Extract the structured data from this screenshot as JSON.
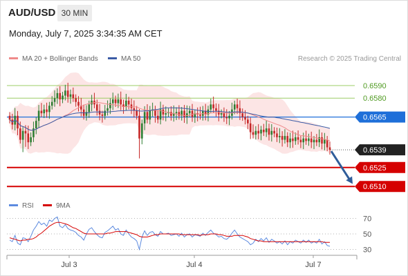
{
  "header": {
    "pair": "AUD/USD",
    "timeframe": "30 MIN",
    "datetime": "Monday, July 7, 2025 3:34:35 AM CET",
    "credit": "Research © 2025 Trading Central"
  },
  "legend": {
    "ma20_label": "MA 20 + Bollinger Bands",
    "ma50_label": "MA 50",
    "rsi_label": "RSI",
    "ma9_label": "9MA"
  },
  "colors": {
    "up": "#2e7d32",
    "down": "#c62828",
    "ma20": "#ef8a8a",
    "bands_fill": "#fbdcdc",
    "ma50": "#3b5ba5",
    "resistance": "#9ccc65",
    "pivot": "#1e6fd9",
    "support": "#d50000",
    "current_tag": "#222222",
    "arrow": "#2f5d9a",
    "rsi": "#5c8adf",
    "rsi_ma": "#d50000"
  },
  "chart_data": [
    {
      "type": "candlestick",
      "title": "AUD/USD 30 MIN",
      "x_labels": [
        "Jul 3",
        "Jul 4",
        "Jul 7"
      ],
      "ylim": [
        0.6503,
        0.6602
      ],
      "current_price": 0.6539,
      "levels": [
        {
          "value": 0.659,
          "label": "0.6590",
          "kind": "resistance"
        },
        {
          "value": 0.658,
          "label": "0.6580",
          "kind": "resistance"
        },
        {
          "value": 0.6565,
          "label": "0.6565",
          "kind": "pivot"
        },
        {
          "value": 0.6539,
          "label": "0.6539",
          "kind": "current"
        },
        {
          "value": 0.6525,
          "label": "0.6525",
          "kind": "support"
        },
        {
          "value": 0.651,
          "label": "0.6510",
          "kind": "support"
        }
      ],
      "forecast_arrow": {
        "from": 0.6538,
        "to": 0.6512
      },
      "series_close": [
        0.6563,
        0.6559,
        0.6566,
        0.6556,
        0.6547,
        0.6554,
        0.6552,
        0.6545,
        0.6549,
        0.6556,
        0.6562,
        0.657,
        0.6568,
        0.6571,
        0.6569,
        0.6574,
        0.6577,
        0.658,
        0.6584,
        0.6579,
        0.6582,
        0.6586,
        0.6581,
        0.6583,
        0.658,
        0.6577,
        0.6574,
        0.6571,
        0.6566,
        0.6569,
        0.6575,
        0.6578,
        0.6575,
        0.657,
        0.6567,
        0.6566,
        0.657,
        0.6572,
        0.6576,
        0.6579,
        0.6576,
        0.6579,
        0.6575,
        0.6573,
        0.6578,
        0.6575,
        0.6572,
        0.657,
        0.6566,
        0.6548,
        0.656,
        0.6569,
        0.6563,
        0.657,
        0.6571,
        0.6566,
        0.6563,
        0.6571,
        0.6567,
        0.6568,
        0.6569,
        0.6566,
        0.6568,
        0.6569,
        0.6566,
        0.657,
        0.6565,
        0.6568,
        0.657,
        0.6565,
        0.6568,
        0.6567,
        0.6566,
        0.657,
        0.6567,
        0.6571,
        0.6575,
        0.6572,
        0.657,
        0.6567,
        0.6568,
        0.6565,
        0.6564,
        0.6566,
        0.6571,
        0.6575,
        0.6572,
        0.6568,
        0.6565,
        0.6563,
        0.656,
        0.6553,
        0.6551,
        0.6554,
        0.6552,
        0.6555,
        0.6553,
        0.6556,
        0.6551,
        0.6554,
        0.6552,
        0.6549,
        0.655,
        0.6547,
        0.655,
        0.6545,
        0.6548,
        0.6546,
        0.6549,
        0.6547,
        0.6545,
        0.6548,
        0.6546,
        0.6548,
        0.6545,
        0.6547,
        0.6545,
        0.6549,
        0.6544,
        0.6547,
        0.6541,
        0.6539
      ]
    },
    {
      "type": "line",
      "title": "RSI",
      "series": [
        {
          "name": "RSI"
        },
        {
          "name": "9MA"
        }
      ],
      "ylim": [
        25,
        75
      ],
      "ticks": [
        70,
        50,
        30
      ],
      "rsi_values": [
        42,
        40,
        48,
        38,
        36,
        45,
        44,
        40,
        47,
        55,
        60,
        66,
        62,
        64,
        60,
        68,
        66,
        70,
        72,
        60,
        58,
        62,
        57,
        55,
        54,
        52,
        48,
        46,
        42,
        50,
        56,
        58,
        53,
        49,
        46,
        45,
        52,
        54,
        57,
        60,
        55,
        57,
        50,
        48,
        55,
        50,
        46,
        44,
        41,
        30,
        46,
        54,
        48,
        52,
        53,
        49,
        47,
        53,
        50,
        50,
        51,
        48,
        49,
        50,
        47,
        51,
        46,
        49,
        50,
        46,
        49,
        48,
        47,
        51,
        48,
        52,
        55,
        51,
        49,
        46,
        47,
        44,
        43,
        46,
        51,
        55,
        50,
        46,
        44,
        42,
        40,
        36,
        38,
        43,
        40,
        44,
        41,
        45,
        39,
        43,
        41,
        38,
        40,
        37,
        41,
        36,
        40,
        38,
        42,
        40,
        38,
        42,
        39,
        42,
        38,
        40,
        38,
        43,
        37,
        40,
        35,
        34
      ],
      "ma9_values": [
        45,
        44,
        43,
        42,
        41,
        42,
        42,
        43,
        43,
        44,
        46,
        49,
        51,
        54,
        57,
        60,
        62,
        64,
        65,
        65,
        64,
        63,
        62,
        60,
        58,
        57,
        55,
        53,
        51,
        50,
        50,
        50,
        50,
        50,
        50,
        50,
        50,
        51,
        51,
        52,
        53,
        53,
        53,
        53,
        53,
        52,
        51,
        50,
        49,
        47,
        46,
        46,
        46,
        47,
        48,
        49,
        49,
        50,
        50,
        50,
        50,
        50,
        50,
        50,
        50,
        49,
        49,
        49,
        49,
        49,
        49,
        49,
        48,
        49,
        49,
        49,
        50,
        50,
        50,
        49,
        49,
        48,
        47,
        47,
        47,
        48,
        48,
        48,
        48,
        47,
        46,
        44,
        43,
        42,
        41,
        41,
        40,
        40,
        40,
        40,
        40,
        40,
        40,
        40,
        40,
        40,
        40,
        40,
        40,
        40,
        40,
        40,
        40,
        40,
        40,
        40,
        40,
        40,
        40,
        39,
        39,
        39
      ]
    }
  ]
}
